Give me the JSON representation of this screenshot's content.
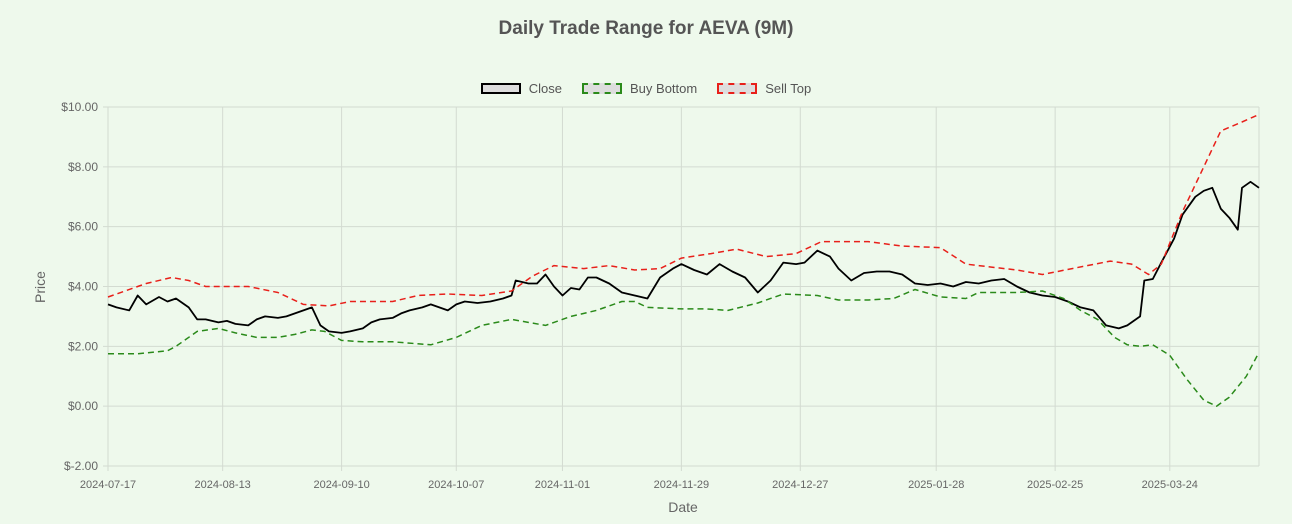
{
  "chart_data": {
    "type": "line",
    "title": "Daily Trade Range for AEVA (9M)",
    "xlabel": "Date",
    "ylabel": "Price",
    "ylim": [
      -2,
      10
    ],
    "y_ticks": [
      "$10.00",
      "$8.00",
      "$6.00",
      "$4.00",
      "$2.00",
      "$0.00",
      "$-2.00"
    ],
    "x_ticks": [
      "2024-07-17",
      "2024-08-13",
      "2024-09-10",
      "2024-10-07",
      "2024-11-01",
      "2024-11-29",
      "2024-12-27",
      "2025-01-28",
      "2025-02-25",
      "2025-03-24"
    ],
    "x_range": [
      "2024-07-17",
      "2025-04-14"
    ],
    "grid": true,
    "legend_position": "top-center",
    "series": [
      {
        "name": "Close",
        "color": "#000000",
        "dash": "solid",
        "points": [
          [
            "2024-07-17",
            3.4
          ],
          [
            "2024-07-19",
            3.3
          ],
          [
            "2024-07-22",
            3.2
          ],
          [
            "2024-07-24",
            3.7
          ],
          [
            "2024-07-26",
            3.4
          ],
          [
            "2024-07-29",
            3.65
          ],
          [
            "2024-07-31",
            3.5
          ],
          [
            "2024-08-02",
            3.6
          ],
          [
            "2024-08-05",
            3.3
          ],
          [
            "2024-08-07",
            2.9
          ],
          [
            "2024-08-09",
            2.9
          ],
          [
            "2024-08-12",
            2.8
          ],
          [
            "2024-08-14",
            2.85
          ],
          [
            "2024-08-16",
            2.75
          ],
          [
            "2024-08-19",
            2.7
          ],
          [
            "2024-08-21",
            2.9
          ],
          [
            "2024-08-23",
            3.0
          ],
          [
            "2024-08-26",
            2.95
          ],
          [
            "2024-08-28",
            3.0
          ],
          [
            "2024-08-30",
            3.1
          ],
          [
            "2024-09-03",
            3.3
          ],
          [
            "2024-09-05",
            2.7
          ],
          [
            "2024-09-07",
            2.5
          ],
          [
            "2024-09-10",
            2.45
          ],
          [
            "2024-09-12",
            2.5
          ],
          [
            "2024-09-15",
            2.6
          ],
          [
            "2024-09-17",
            2.8
          ],
          [
            "2024-09-19",
            2.9
          ],
          [
            "2024-09-22",
            2.95
          ],
          [
            "2024-09-24",
            3.1
          ],
          [
            "2024-09-26",
            3.2
          ],
          [
            "2024-09-29",
            3.3
          ],
          [
            "2024-10-01",
            3.4
          ],
          [
            "2024-10-03",
            3.3
          ],
          [
            "2024-10-05",
            3.2
          ],
          [
            "2024-10-07",
            3.4
          ],
          [
            "2024-10-09",
            3.5
          ],
          [
            "2024-10-12",
            3.45
          ],
          [
            "2024-10-15",
            3.5
          ],
          [
            "2024-10-18",
            3.6
          ],
          [
            "2024-10-20",
            3.7
          ],
          [
            "2024-10-21",
            4.2
          ],
          [
            "2024-10-24",
            4.1
          ],
          [
            "2024-10-26",
            4.1
          ],
          [
            "2024-10-28",
            4.4
          ],
          [
            "2024-10-30",
            4.0
          ],
          [
            "2024-11-01",
            3.7
          ],
          [
            "2024-11-03",
            3.95
          ],
          [
            "2024-11-05",
            3.9
          ],
          [
            "2024-11-07",
            4.3
          ],
          [
            "2024-11-09",
            4.3
          ],
          [
            "2024-11-12",
            4.1
          ],
          [
            "2024-11-15",
            3.8
          ],
          [
            "2024-11-18",
            3.7
          ],
          [
            "2024-11-21",
            3.6
          ],
          [
            "2024-11-24",
            4.3
          ],
          [
            "2024-11-27",
            4.6
          ],
          [
            "2024-11-29",
            4.75
          ],
          [
            "2024-12-02",
            4.55
          ],
          [
            "2024-12-05",
            4.4
          ],
          [
            "2024-12-08",
            4.75
          ],
          [
            "2024-12-11",
            4.5
          ],
          [
            "2024-12-14",
            4.3
          ],
          [
            "2024-12-17",
            3.8
          ],
          [
            "2024-12-20",
            4.2
          ],
          [
            "2024-12-23",
            4.8
          ],
          [
            "2024-12-26",
            4.75
          ],
          [
            "2024-12-28",
            4.8
          ],
          [
            "2024-12-31",
            5.2
          ],
          [
            "2025-01-03",
            5.0
          ],
          [
            "2025-01-05",
            4.6
          ],
          [
            "2025-01-08",
            4.2
          ],
          [
            "2025-01-11",
            4.45
          ],
          [
            "2025-01-14",
            4.5
          ],
          [
            "2025-01-17",
            4.5
          ],
          [
            "2025-01-20",
            4.4
          ],
          [
            "2025-01-23",
            4.1
          ],
          [
            "2025-01-26",
            4.05
          ],
          [
            "2025-01-29",
            4.1
          ],
          [
            "2025-02-01",
            4.0
          ],
          [
            "2025-02-04",
            4.15
          ],
          [
            "2025-02-07",
            4.1
          ],
          [
            "2025-02-10",
            4.2
          ],
          [
            "2025-02-13",
            4.25
          ],
          [
            "2025-02-16",
            4.0
          ],
          [
            "2025-02-19",
            3.8
          ],
          [
            "2025-02-22",
            3.7
          ],
          [
            "2025-02-25",
            3.65
          ],
          [
            "2025-02-28",
            3.5
          ],
          [
            "2025-03-03",
            3.3
          ],
          [
            "2025-03-06",
            3.2
          ],
          [
            "2025-03-09",
            2.7
          ],
          [
            "2025-03-12",
            2.6
          ],
          [
            "2025-03-14",
            2.7
          ],
          [
            "2025-03-17",
            3.0
          ],
          [
            "2025-03-18",
            4.2
          ],
          [
            "2025-03-20",
            4.25
          ],
          [
            "2025-03-22",
            4.8
          ],
          [
            "2025-03-25",
            5.6
          ],
          [
            "2025-03-27",
            6.4
          ],
          [
            "2025-03-30",
            7.0
          ],
          [
            "2025-04-01",
            7.2
          ],
          [
            "2025-04-03",
            7.3
          ],
          [
            "2025-04-05",
            6.6
          ],
          [
            "2025-04-07",
            6.3
          ],
          [
            "2025-04-09",
            5.9
          ],
          [
            "2025-04-10",
            7.3
          ],
          [
            "2025-04-12",
            7.5
          ],
          [
            "2025-04-14",
            7.3
          ]
        ]
      },
      {
        "name": "Buy Bottom",
        "color": "#2a8a1a",
        "dash": "dashed",
        "points": [
          [
            "2024-07-17",
            1.75
          ],
          [
            "2024-07-24",
            1.75
          ],
          [
            "2024-07-31",
            1.85
          ],
          [
            "2024-08-02",
            2.0
          ],
          [
            "2024-08-07",
            2.5
          ],
          [
            "2024-08-12",
            2.6
          ],
          [
            "2024-08-16",
            2.45
          ],
          [
            "2024-08-21",
            2.3
          ],
          [
            "2024-08-26",
            2.3
          ],
          [
            "2024-08-30",
            2.4
          ],
          [
            "2024-09-03",
            2.55
          ],
          [
            "2024-09-06",
            2.5
          ],
          [
            "2024-09-10",
            2.2
          ],
          [
            "2024-09-15",
            2.15
          ],
          [
            "2024-09-22",
            2.15
          ],
          [
            "2024-10-01",
            2.05
          ],
          [
            "2024-10-07",
            2.3
          ],
          [
            "2024-10-13",
            2.7
          ],
          [
            "2024-10-20",
            2.9
          ],
          [
            "2024-10-28",
            2.7
          ],
          [
            "2024-11-03",
            3.0
          ],
          [
            "2024-11-09",
            3.2
          ],
          [
            "2024-11-15",
            3.5
          ],
          [
            "2024-11-18",
            3.5
          ],
          [
            "2024-11-21",
            3.3
          ],
          [
            "2024-11-29",
            3.25
          ],
          [
            "2024-12-05",
            3.25
          ],
          [
            "2024-12-10",
            3.2
          ],
          [
            "2024-12-17",
            3.45
          ],
          [
            "2024-12-23",
            3.75
          ],
          [
            "2024-12-31",
            3.7
          ],
          [
            "2025-01-05",
            3.55
          ],
          [
            "2025-01-12",
            3.55
          ],
          [
            "2025-01-18",
            3.6
          ],
          [
            "2025-01-23",
            3.9
          ],
          [
            "2025-01-29",
            3.65
          ],
          [
            "2025-02-04",
            3.6
          ],
          [
            "2025-02-07",
            3.8
          ],
          [
            "2025-02-16",
            3.8
          ],
          [
            "2025-02-22",
            3.85
          ],
          [
            "2025-02-27",
            3.6
          ],
          [
            "2025-03-03",
            3.2
          ],
          [
            "2025-03-07",
            2.9
          ],
          [
            "2025-03-11",
            2.3
          ],
          [
            "2025-03-14",
            2.05
          ],
          [
            "2025-03-17",
            2.0
          ],
          [
            "2025-03-20",
            2.05
          ],
          [
            "2025-03-24",
            1.7
          ],
          [
            "2025-03-28",
            0.9
          ],
          [
            "2025-04-01",
            0.2
          ],
          [
            "2025-04-04",
            0.0
          ],
          [
            "2025-04-07",
            0.3
          ],
          [
            "2025-04-11",
            1.0
          ],
          [
            "2025-04-14",
            1.8
          ]
        ]
      },
      {
        "name": "Sell Top",
        "color": "#e8201a",
        "dash": "dashed",
        "points": [
          [
            "2024-07-17",
            3.65
          ],
          [
            "2024-07-21",
            3.85
          ],
          [
            "2024-07-26",
            4.1
          ],
          [
            "2024-08-01",
            4.3
          ],
          [
            "2024-08-05",
            4.2
          ],
          [
            "2024-08-09",
            4.0
          ],
          [
            "2024-08-14",
            4.0
          ],
          [
            "2024-08-19",
            4.0
          ],
          [
            "2024-08-26",
            3.8
          ],
          [
            "2024-09-01",
            3.4
          ],
          [
            "2024-09-07",
            3.35
          ],
          [
            "2024-09-12",
            3.5
          ],
          [
            "2024-09-22",
            3.5
          ],
          [
            "2024-09-28",
            3.7
          ],
          [
            "2024-10-05",
            3.75
          ],
          [
            "2024-10-13",
            3.7
          ],
          [
            "2024-10-20",
            3.85
          ],
          [
            "2024-10-25",
            4.35
          ],
          [
            "2024-10-30",
            4.7
          ],
          [
            "2024-11-06",
            4.6
          ],
          [
            "2024-11-12",
            4.7
          ],
          [
            "2024-11-18",
            4.55
          ],
          [
            "2024-11-24",
            4.6
          ],
          [
            "2024-11-29",
            4.95
          ],
          [
            "2024-12-06",
            5.1
          ],
          [
            "2024-12-12",
            5.25
          ],
          [
            "2024-12-19",
            5.0
          ],
          [
            "2024-12-26",
            5.1
          ],
          [
            "2025-01-01",
            5.5
          ],
          [
            "2025-01-12",
            5.5
          ],
          [
            "2025-01-20",
            5.35
          ],
          [
            "2025-01-29",
            5.3
          ],
          [
            "2025-02-04",
            4.75
          ],
          [
            "2025-02-10",
            4.65
          ],
          [
            "2025-02-16",
            4.55
          ],
          [
            "2025-02-22",
            4.4
          ],
          [
            "2025-03-01",
            4.6
          ],
          [
            "2025-03-10",
            4.85
          ],
          [
            "2025-03-15",
            4.75
          ],
          [
            "2025-03-19",
            4.4
          ],
          [
            "2025-03-22",
            4.75
          ],
          [
            "2025-03-27",
            6.5
          ],
          [
            "2025-04-01",
            8.0
          ],
          [
            "2025-04-05",
            9.2
          ],
          [
            "2025-04-10",
            9.5
          ],
          [
            "2025-04-14",
            9.75
          ]
        ]
      }
    ]
  }
}
